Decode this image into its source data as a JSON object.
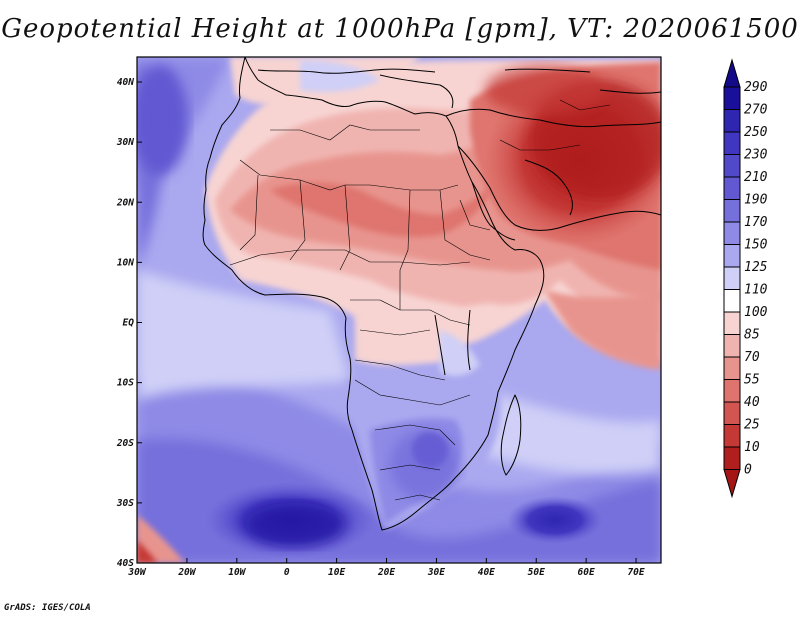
{
  "title": "Geopotential Height at 1000hPa [gpm], VT: 2020061500",
  "credit": "GrADS: IGES/COLA",
  "map": {
    "variable": "Geopotential Height at 1000hPa",
    "units": "gpm",
    "valid_time": "2020061500",
    "lon_ticks": [
      "30W",
      "20W",
      "10W",
      "0",
      "10E",
      "20E",
      "30E",
      "40E",
      "50E",
      "60E",
      "70E"
    ],
    "lat_ticks": [
      "40N",
      "30N",
      "20N",
      "10N",
      "EQ",
      "10S",
      "20S",
      "30S",
      "40S"
    ]
  },
  "colorbar": {
    "levels": [
      "290",
      "270",
      "250",
      "230",
      "210",
      "190",
      "170",
      "150",
      "125",
      "110",
      "100",
      "85",
      "70",
      "55",
      "40",
      "25",
      "10",
      "0"
    ],
    "colors": [
      "#1a0f9a",
      "#2e25b0",
      "#4036c0",
      "#5148ca",
      "#6258d2",
      "#7670dc",
      "#8e8ae6",
      "#aaa8ef",
      "#cfcff7",
      "#ffffff",
      "#f7d4d2",
      "#f0b4b0",
      "#e8948e",
      "#df746e",
      "#d35552",
      "#c43836",
      "#b01e1e"
    ],
    "top_arrow_color": "#120a88",
    "bottom_arrow_color": "#a51515"
  }
}
